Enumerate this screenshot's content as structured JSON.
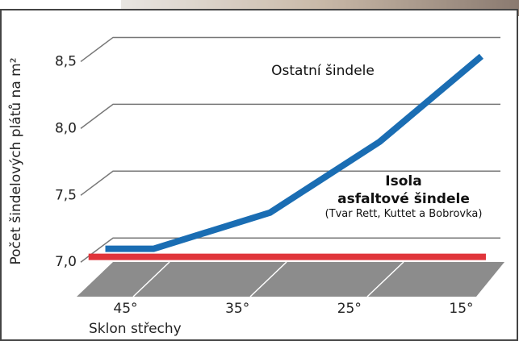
{
  "chart_data": {
    "type": "line",
    "y_label": "Počet šindelových plátů na m²",
    "x_label": "Sklon střechy",
    "xlim": [
      49,
      11.5
    ],
    "xticks": [
      {
        "value": 45,
        "label": "45°"
      },
      {
        "value": 35,
        "label": "35°"
      },
      {
        "value": 25,
        "label": "25°"
      },
      {
        "value": 15,
        "label": "15°"
      }
    ],
    "ylim": [
      6.73,
      8.78
    ],
    "yticks": [
      {
        "value": 7.0,
        "label": "7,0"
      },
      {
        "value": 7.5,
        "label": "7,5"
      },
      {
        "value": 8.0,
        "label": "8,0"
      },
      {
        "value": 8.5,
        "label": "8,5"
      }
    ],
    "grid": true,
    "series": [
      {
        "name": "Ostatní šindele",
        "color": "#1a6db3",
        "x": [
          46.8,
          42.5,
          32.1,
          22.3,
          13.2
        ],
        "values": [
          7.1,
          7.1,
          7.37,
          7.9,
          8.54
        ]
      },
      {
        "name": "Isola\nasfaltové šindele",
        "color": "#e0353b",
        "x": [
          48.3,
          12.8
        ],
        "values": [
          7.04,
          7.04
        ]
      }
    ],
    "annotations": [
      "(Tvar Rett, Kuttet a Bobrovka)"
    ]
  }
}
